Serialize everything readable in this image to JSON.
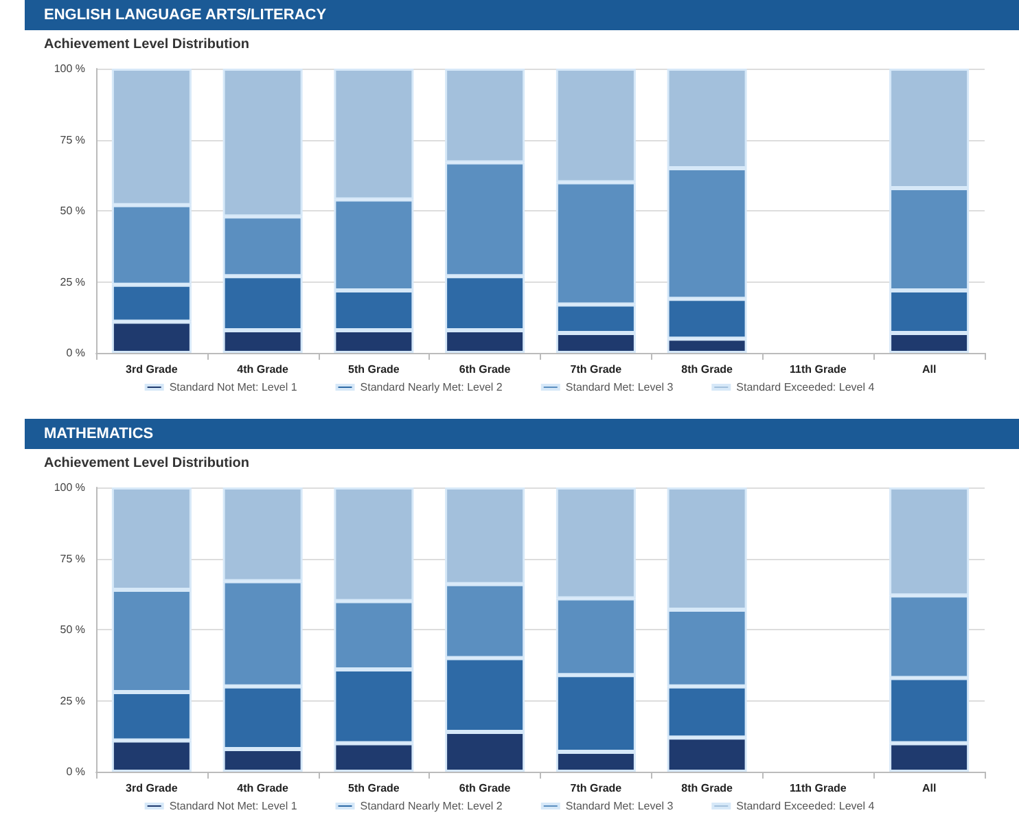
{
  "chart_data": [
    {
      "type": "bar",
      "title": "ENGLISH LANGUAGE ARTS/LITERACY",
      "subtitle": "Achievement Level Distribution",
      "stacked": true,
      "grid": "y",
      "legend": "bottom",
      "categories": [
        "3rd Grade",
        "4th Grade",
        "5th Grade",
        "6th Grade",
        "7th Grade",
        "8th Grade",
        "11th Grade",
        "All"
      ],
      "ylim": [
        0,
        100
      ],
      "yticks": [
        {
          "value": 0,
          "label": "0 %"
        },
        {
          "value": 25,
          "label": "25 %"
        },
        {
          "value": 50,
          "label": "50 %"
        },
        {
          "value": 75,
          "label": "75 %"
        },
        {
          "value": 100,
          "label": "100 %"
        }
      ],
      "series": [
        {
          "name": "Standard Not Met: Level 1",
          "color": "#1f3a6e",
          "values": [
            11,
            8,
            8,
            8,
            7,
            5,
            null,
            7
          ]
        },
        {
          "name": "Standard Nearly Met: Level 2",
          "color": "#2e6aa6",
          "values": [
            13,
            19,
            14,
            19,
            10,
            14,
            null,
            15
          ]
        },
        {
          "name": "Standard Met: Level 3",
          "color": "#5b8fc0",
          "values": [
            28,
            21,
            32,
            40,
            43,
            46,
            null,
            36
          ]
        },
        {
          "name": "Standard Exceeded: Level 4",
          "color": "#a3c0dc",
          "values": [
            48,
            52,
            46,
            33,
            40,
            35,
            null,
            42
          ]
        }
      ]
    },
    {
      "type": "bar",
      "title": "MATHEMATICS",
      "subtitle": "Achievement Level Distribution",
      "stacked": true,
      "grid": "y",
      "legend": "bottom",
      "categories": [
        "3rd Grade",
        "4th Grade",
        "5th Grade",
        "6th Grade",
        "7th Grade",
        "8th Grade",
        "11th Grade",
        "All"
      ],
      "ylim": [
        0,
        100
      ],
      "yticks": [
        {
          "value": 0,
          "label": "0 %"
        },
        {
          "value": 25,
          "label": "25 %"
        },
        {
          "value": 50,
          "label": "50 %"
        },
        {
          "value": 75,
          "label": "75 %"
        },
        {
          "value": 100,
          "label": "100 %"
        }
      ],
      "series": [
        {
          "name": "Standard Not Met: Level 1",
          "color": "#1f3a6e",
          "values": [
            11,
            8,
            10,
            14,
            7,
            12,
            null,
            10
          ]
        },
        {
          "name": "Standard Nearly Met: Level 2",
          "color": "#2e6aa6",
          "values": [
            17,
            22,
            26,
            26,
            27,
            18,
            null,
            23
          ]
        },
        {
          "name": "Standard Met: Level 3",
          "color": "#5b8fc0",
          "values": [
            36,
            37,
            24,
            26,
            27,
            27,
            null,
            29
          ]
        },
        {
          "name": "Standard Exceeded: Level 4",
          "color": "#a3c0dc",
          "values": [
            36,
            33,
            40,
            34,
            39,
            43,
            null,
            38
          ]
        }
      ]
    }
  ]
}
